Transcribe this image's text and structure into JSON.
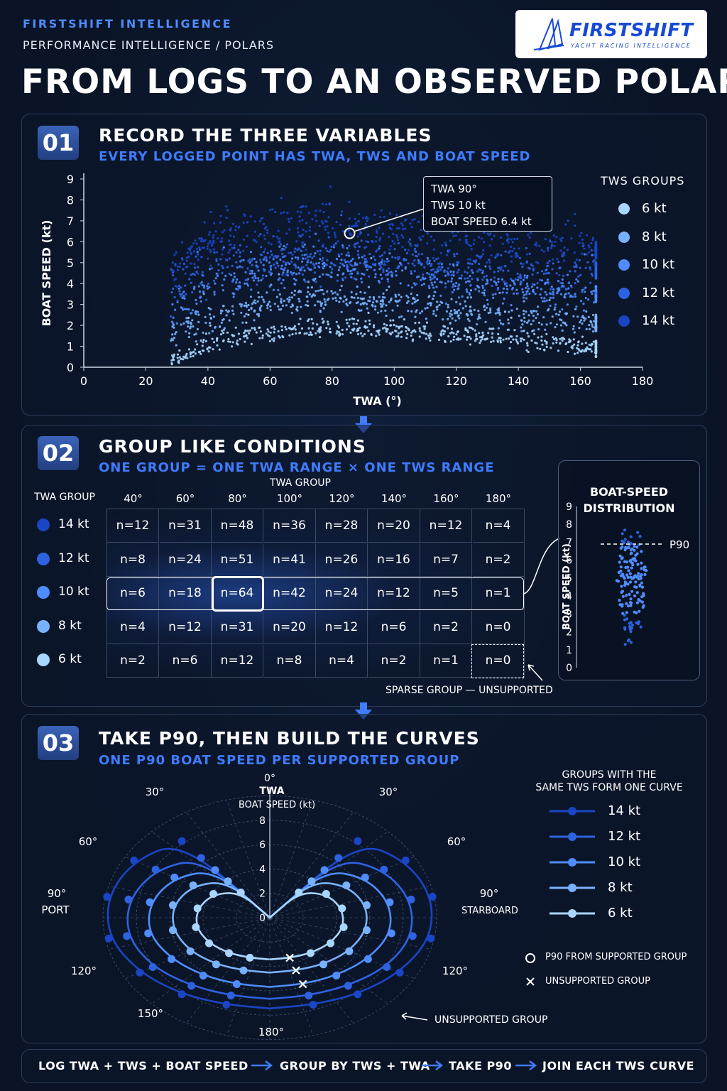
{
  "header": {
    "brand": "FIRSTSHIFT INTELLIGENCE",
    "breadcrumb": "PERFORMANCE INTELLIGENCE / POLARS",
    "title": "FROM LOGS TO AN OBSERVED POLAR",
    "logo_word": "FIRSTSHIFT",
    "logo_tagline": "YACHT RACING INTELLIGENCE"
  },
  "colors": {
    "bg": "#0a1426",
    "accent": "#3f7cff",
    "tws_6": "#a9d6ff",
    "tws_8": "#78b2ff",
    "tws_10": "#4f8dff",
    "tws_12": "#2e62e0",
    "tws_14": "#1a45c4"
  },
  "step1": {
    "number": "01",
    "title": "RECORD THE THREE VARIABLES",
    "subtitle": "EVERY LOGGED POINT HAS TWA, TWS AND BOAT SPEED",
    "tooltip": [
      "TWA 90°",
      "TWS 10 kt",
      "BOAT SPEED 6.4 kt"
    ],
    "legend_title": "TWS GROUPS"
  },
  "chart_data": [
    {
      "type": "scatter",
      "xlabel": "TWA (°)",
      "ylabel": "BOAT SPEED (kt)",
      "xlim": [
        0,
        180
      ],
      "ylim": [
        0,
        9
      ],
      "x_ticks": [
        "0",
        "20",
        "40",
        "60",
        "80",
        "100",
        "120",
        "140",
        "160",
        "180"
      ],
      "y_ticks": [
        "0",
        "1",
        "2",
        "3",
        "4",
        "5",
        "6",
        "7",
        "8",
        "9"
      ],
      "twa_range": [
        28,
        165
      ],
      "series": [
        {
          "name": "6 kt",
          "x": [
            30,
            40,
            50,
            60,
            70,
            80,
            90,
            100,
            110,
            120,
            130,
            140,
            150,
            160,
            165
          ],
          "y": [
            0.4,
            1.1,
            1.5,
            1.7,
            1.85,
            1.9,
            1.85,
            1.8,
            1.7,
            1.6,
            1.5,
            1.35,
            1.2,
            1.0,
            0.9
          ]
        },
        {
          "name": "8 kt",
          "x": [
            30,
            40,
            50,
            60,
            70,
            80,
            90,
            100,
            110,
            120,
            130,
            140,
            150,
            160,
            165
          ],
          "y": [
            1.5,
            2.3,
            2.8,
            3.1,
            3.3,
            3.3,
            3.2,
            3.1,
            2.9,
            2.7,
            2.5,
            2.4,
            2.3,
            2.2,
            2.1
          ]
        },
        {
          "name": "10 kt",
          "x": [
            30,
            40,
            50,
            60,
            70,
            80,
            90,
            100,
            110,
            120,
            130,
            140,
            150,
            160,
            165
          ],
          "y": [
            2.7,
            3.7,
            4.3,
            4.6,
            4.8,
            4.9,
            4.8,
            4.6,
            4.3,
            4.0,
            3.8,
            3.7,
            3.6,
            3.5,
            3.5
          ]
        },
        {
          "name": "12 kt",
          "x": [
            30,
            40,
            50,
            60,
            70,
            80,
            90,
            100,
            110,
            120,
            130,
            140,
            150,
            160,
            165
          ],
          "y": [
            3.8,
            4.6,
            5.0,
            5.1,
            5.2,
            5.2,
            5.1,
            5.0,
            4.9,
            4.8,
            4.7,
            4.7,
            4.6,
            4.6,
            4.6
          ]
        },
        {
          "name": "14 kt",
          "x": [
            30,
            40,
            50,
            60,
            70,
            80,
            90,
            100,
            110,
            120,
            130,
            140,
            150,
            160,
            165
          ],
          "y": [
            4.7,
            5.9,
            6.3,
            6.5,
            6.7,
            6.7,
            6.6,
            6.5,
            6.2,
            6.0,
            5.9,
            5.8,
            5.7,
            5.7,
            5.6
          ]
        }
      ],
      "highlight": {
        "x": 90,
        "y": 6.4
      }
    },
    {
      "type": "table",
      "title": "TWA GROUP",
      "row_header": "TWA GROUP",
      "columns": [
        "40°",
        "60°",
        "80°",
        "100°",
        "120°",
        "140°",
        "160°",
        "180°"
      ],
      "rows": [
        {
          "label": "14 kt",
          "cells": [
            "n=12",
            "n=31",
            "n=48",
            "n=36",
            "n=28",
            "n=20",
            "n=12",
            "n=4"
          ]
        },
        {
          "label": "12 kt",
          "cells": [
            "n=8",
            "n=24",
            "n=51",
            "n=41",
            "n=26",
            "n=16",
            "n=7",
            "n=2"
          ]
        },
        {
          "label": "10 kt",
          "cells": [
            "n=6",
            "n=18",
            "n=64",
            "n=42",
            "n=24",
            "n=12",
            "n=5",
            "n=1"
          ]
        },
        {
          "label": "8 kt",
          "cells": [
            "n=4",
            "n=12",
            "n=31",
            "n=20",
            "n=12",
            "n=6",
            "n=2",
            "n=0"
          ]
        },
        {
          "label": "6 kt",
          "cells": [
            "n=2",
            "n=6",
            "n=12",
            "n=8",
            "n=4",
            "n=2",
            "n=1",
            "n=0"
          ]
        }
      ]
    },
    {
      "type": "scatter",
      "title": "BOAT-SPEED DISTRIBUTION",
      "ylabel": "BOAT SPEED (kt)",
      "ylim": [
        0,
        9
      ],
      "y_ticks": [
        "0",
        "1",
        "2",
        "3",
        "4",
        "5",
        "6",
        "7",
        "8",
        "9"
      ],
      "p90": 6.9,
      "p90_label": "P90"
    },
    {
      "type": "line",
      "polar": true,
      "rlabel": "BOAT SPEED (kt)",
      "rlim": [
        0,
        10
      ],
      "r_ticks": [
        "0",
        "2",
        "4",
        "6",
        "8"
      ],
      "angle_labels": [
        "0°",
        "30°",
        "60°",
        "90°",
        "120°",
        "150°",
        "180°"
      ],
      "top_label": "TWA",
      "port_label": "PORT",
      "starboard_label": "STARBOARD",
      "twa": [
        40,
        60,
        80,
        100,
        120,
        140,
        160
      ],
      "series": [
        {
          "name": "14 kt",
          "r": [
            8.2,
            9.4,
            9.9,
            9.8,
            9.0,
            8.2,
            7.6
          ],
          "supported": [
            true,
            true,
            true,
            true,
            true,
            true,
            true
          ]
        },
        {
          "name": "12 kt",
          "r": [
            6.4,
            7.9,
            8.6,
            8.7,
            8.1,
            7.3,
            6.8
          ],
          "supported": [
            true,
            true,
            true,
            true,
            true,
            true,
            true
          ]
        },
        {
          "name": "10 kt",
          "r": [
            5.1,
            6.6,
            7.3,
            7.4,
            6.8,
            6.2,
            5.8
          ],
          "supported": [
            true,
            true,
            true,
            true,
            true,
            true,
            false
          ]
        },
        {
          "name": "8 kt",
          "r": [
            3.9,
            5.3,
            5.9,
            5.9,
            5.5,
            5.0,
            4.6
          ],
          "supported": [
            true,
            true,
            true,
            true,
            true,
            true,
            false
          ]
        },
        {
          "name": "6 kt",
          "r": [
            2.7,
            3.9,
            4.4,
            4.5,
            4.2,
            3.8,
            3.5
          ],
          "supported": [
            true,
            true,
            true,
            true,
            true,
            true,
            false
          ]
        }
      ]
    }
  ],
  "step2": {
    "number": "02",
    "title": "GROUP LIKE CONDITIONS",
    "subtitle": "ONE GROUP = ONE TWA RANGE × ONE TWS RANGE",
    "sparse_note": "SPARSE GROUP — UNSUPPORTED"
  },
  "step3": {
    "number": "03",
    "title": "TAKE P90, THEN BUILD THE CURVES",
    "subtitle": "ONE P90 BOAT SPEED PER SUPPORTED GROUP",
    "legend_title": [
      "GROUPS WITH THE",
      "SAME TWS FORM ONE CURVE"
    ],
    "key_supported": "P90 FROM SUPPORTED GROUP",
    "key_unsupported": "UNSUPPORTED GROUP",
    "unsupported_callout": "UNSUPPORTED GROUP"
  },
  "footer": {
    "steps": [
      "LOG TWA + TWS + BOAT SPEED",
      "GROUP BY TWS + TWA",
      "TAKE P90",
      "JOIN EACH TWS CURVE"
    ]
  }
}
